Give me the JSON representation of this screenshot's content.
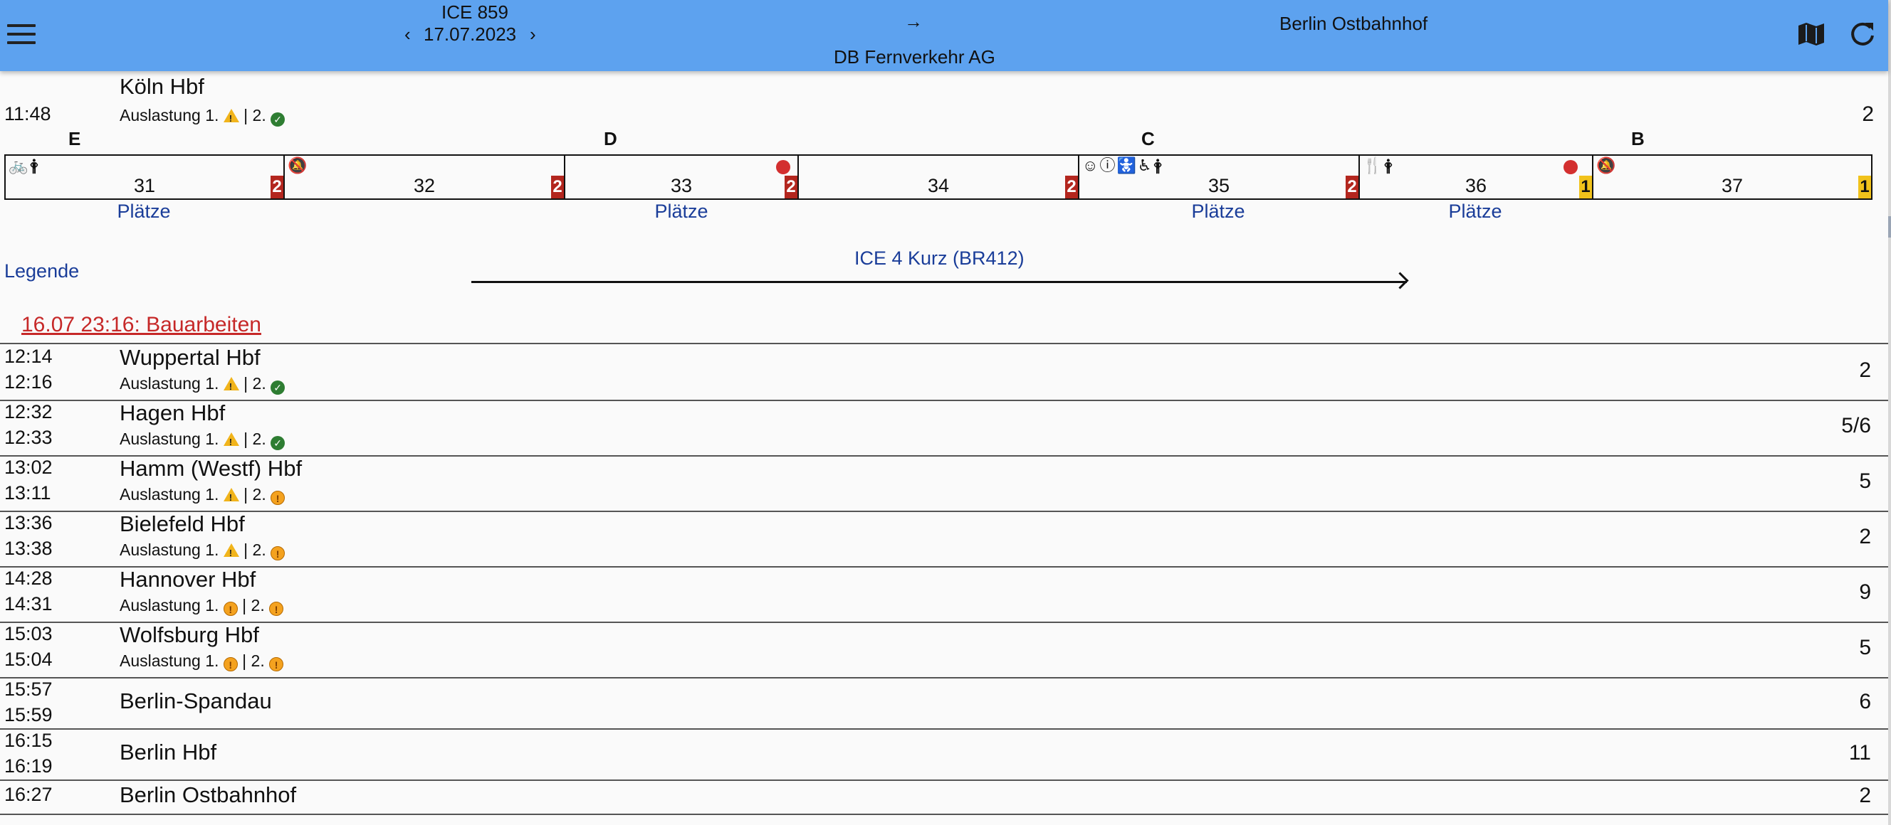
{
  "header": {
    "train": "ICE 859",
    "date": "17.07.2023",
    "arrow": "→",
    "operator": "DB Fernverkehr AG",
    "destination": "Berlin Ostbahnhof",
    "prev_icon": "chevron-left-icon",
    "next_icon": "chevron-right-icon",
    "menu_icon": "menu-icon",
    "map_icon": "map-icon",
    "refresh_icon": "refresh-icon"
  },
  "first_stop": {
    "name": "Köln Hbf",
    "dep": "11:48",
    "occupancy": "Auslastung 1.",
    "occupancy_mid": "| 2.",
    "first_class_icon": "warn",
    "second_class_icon": "ok",
    "platform": "2"
  },
  "sectors": [
    "E",
    "D",
    "C",
    "B"
  ],
  "coaches": [
    {
      "number": "31",
      "class": "2",
      "icons": "🚲🛉"
    },
    {
      "number": "32",
      "class": "2",
      "icons": "🔕"
    },
    {
      "number": "33",
      "class": "2",
      "icons": "",
      "dot": true
    },
    {
      "number": "34",
      "class": "2",
      "icons": ""
    },
    {
      "number": "35",
      "class": "2",
      "icons": "☺ⓘ🚼♿🛉"
    },
    {
      "number": "36",
      "class": "1",
      "icons": "🍴🛉",
      "dot": true
    },
    {
      "number": "37",
      "class": "1",
      "icons": "🔕"
    }
  ],
  "seats_label": "Plätze",
  "legend": "Legende",
  "train_type": "ICE 4 Kurz (BR412)",
  "notice": "16.07 23:16: Bauarbeiten",
  "stops": [
    {
      "name": "Wuppertal Hbf",
      "arr": "12:14",
      "dep": "12:16",
      "occ1": "warn",
      "occ2": "ok",
      "platform": "2"
    },
    {
      "name": "Hagen Hbf",
      "arr": "12:32",
      "dep": "12:33",
      "occ1": "warn",
      "occ2": "ok",
      "platform": "5/6"
    },
    {
      "name": "Hamm (Westf) Hbf",
      "arr": "13:02",
      "dep": "13:11",
      "occ1": "warn",
      "occ2": "high",
      "platform": "5"
    },
    {
      "name": "Bielefeld Hbf",
      "arr": "13:36",
      "dep": "13:38",
      "occ1": "warn",
      "occ2": "high",
      "platform": "2"
    },
    {
      "name": "Hannover Hbf",
      "arr": "14:28",
      "dep": "14:31",
      "occ1": "high",
      "occ2": "high",
      "platform": "9"
    },
    {
      "name": "Wolfsburg Hbf",
      "arr": "15:03",
      "dep": "15:04",
      "occ1": "high",
      "occ2": "high",
      "platform": "5"
    },
    {
      "name": "Berlin-Spandau",
      "arr": "15:57",
      "dep": "15:59",
      "platform": "6"
    },
    {
      "name": "Berlin Hbf",
      "arr": "16:15",
      "dep": "16:19",
      "platform": "11"
    },
    {
      "name": "Berlin Ostbahnhof",
      "arr": "16:27",
      "platform": "2"
    }
  ],
  "occupancy_label": "Auslastung 1.",
  "occupancy_sep": "| 2.",
  "colors": {
    "header": "#5da2ef",
    "class2": "#b3261e",
    "class1": "#f1c21b",
    "link": "#1a3d99",
    "notice": "#c62828"
  }
}
